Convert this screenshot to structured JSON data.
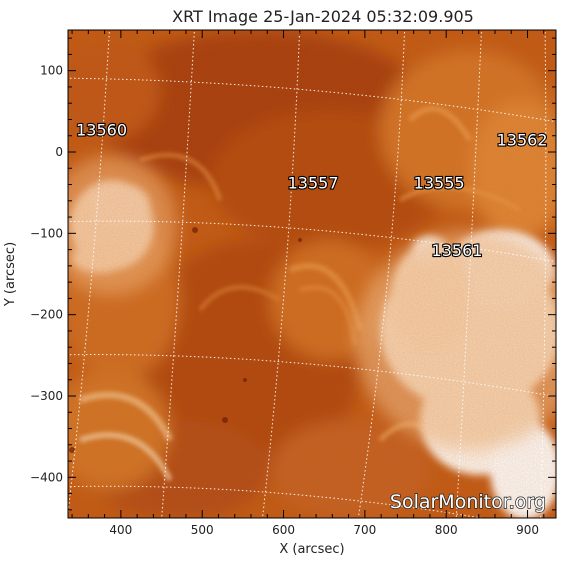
{
  "title": "XRT Image 25-Jan-2024 05:32:09.905",
  "x_axis_label": "X (arcsec)",
  "y_axis_label": "Y (arcsec)",
  "x_ticks": [
    "400",
    "500",
    "600",
    "700",
    "800",
    "900"
  ],
  "y_ticks": [
    "100",
    "0",
    "−100",
    "−200",
    "−300",
    "−400"
  ],
  "x_range": [
    335,
    935
  ],
  "y_range": [
    -450,
    150
  ],
  "active_regions": [
    {
      "id": "13560",
      "x": 345,
      "y": 20
    },
    {
      "id": "13557",
      "x": 605,
      "y": -45
    },
    {
      "id": "13555",
      "x": 760,
      "y": -45
    },
    {
      "id": "13562",
      "x": 862,
      "y": 8
    },
    {
      "id": "13561",
      "x": 782,
      "y": -128
    }
  ],
  "watermark": "SolarMonitor.org",
  "colors": {
    "background": "#ffffff",
    "frame": "#000000",
    "text": "#222222",
    "corona_dark": "#8a2a05",
    "corona_mid": "#c45a10",
    "corona_bright": "#ec9a3e",
    "saturated": "#fffdfb",
    "grid": "#ffffff"
  }
}
